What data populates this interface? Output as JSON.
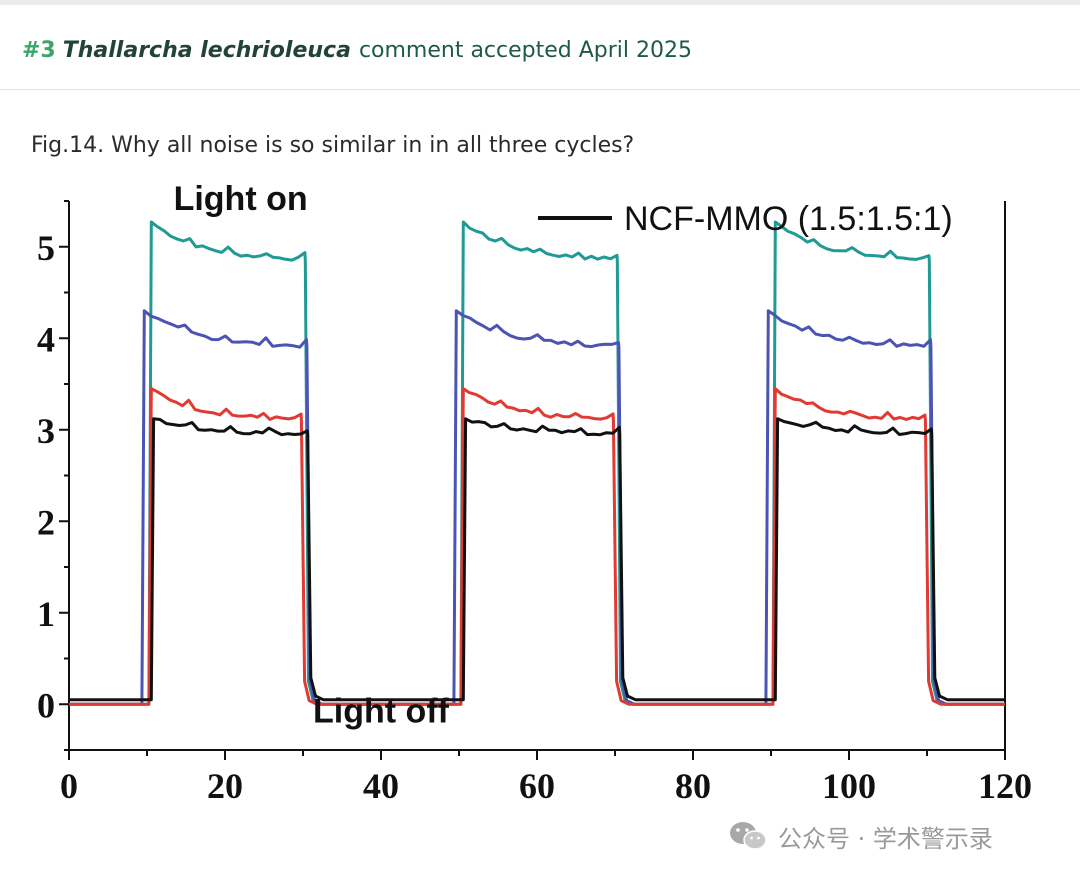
{
  "header": {
    "number": "#3",
    "species": "Thallarcha lechrioleuca",
    "status": "comment accepted April 2025"
  },
  "caption": "Fig.14. Why all noise is so similar in in all three cycles?",
  "watermark": {
    "icon": "wechat-icon",
    "text": "公众号 · 学术警示录"
  },
  "chart_data": {
    "type": "line",
    "title": "",
    "xlabel": "",
    "ylabel": "",
    "xlim": [
      0,
      120
    ],
    "ylim": [
      -0.5,
      5.5
    ],
    "x_ticks": [
      0,
      20,
      40,
      60,
      80,
      100,
      120
    ],
    "y_ticks": [
      0,
      1,
      2,
      3,
      4,
      5
    ],
    "grid": false,
    "legend": {
      "position": "top-right",
      "entries": [
        {
          "label": "NCF-MMO (1.5:1.5:1)",
          "color": "#111111"
        }
      ]
    },
    "annotations": [
      {
        "text": "Light on",
        "x": 22,
        "y": 5.4
      },
      {
        "text": "Light off",
        "x": 40,
        "y": -0.2
      }
    ],
    "cycles": [
      {
        "on": 10,
        "off": 30
      },
      {
        "on": 50,
        "off": 70
      },
      {
        "on": 90,
        "off": 110
      }
    ],
    "series": [
      {
        "color": "#1f9a94",
        "baseline": 0.0,
        "peak": 5.27,
        "end": 4.85,
        "on_offset": 0.3,
        "off_offset": 0.3
      },
      {
        "color": "#4b53b3",
        "baseline": 0.0,
        "peak": 4.3,
        "end": 3.9,
        "on_offset": -0.6,
        "off_offset": 0.5
      },
      {
        "color": "#e03a32",
        "baseline": 0.0,
        "peak": 3.45,
        "end": 3.1,
        "on_offset": 0.3,
        "off_offset": -0.2
      },
      {
        "color": "#111111",
        "baseline": 0.05,
        "peak": 3.12,
        "end": 2.95,
        "on_offset": 0.6,
        "off_offset": 0.6
      }
    ]
  }
}
